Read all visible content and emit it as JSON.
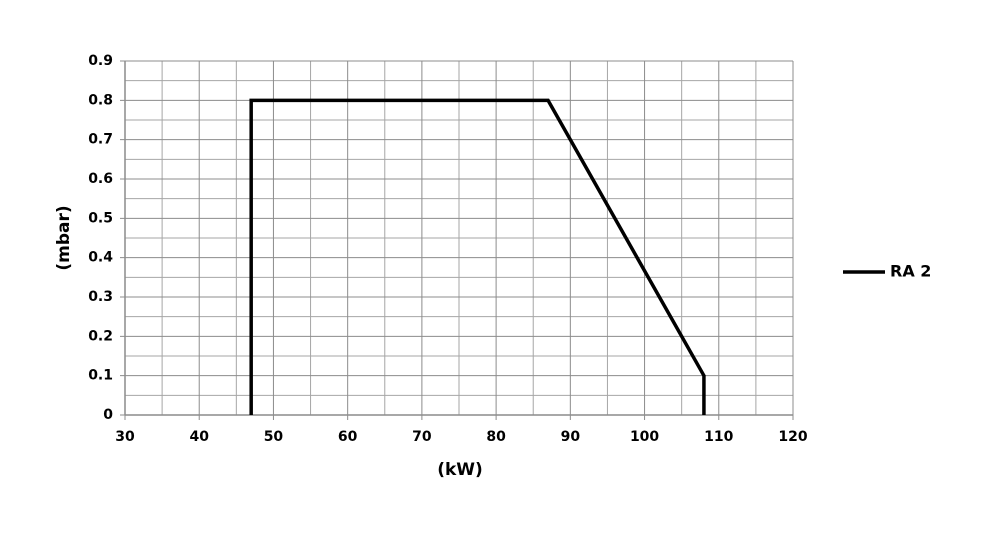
{
  "chart_data": {
    "type": "line",
    "x_label": "(kW)",
    "y_label": "(mbar)",
    "x": [
      47,
      47,
      87,
      108,
      108
    ],
    "series": [
      {
        "name": "RA 2",
        "color": "#000000",
        "values": [
          0,
          0.8,
          0.8,
          0.1,
          0
        ]
      }
    ],
    "xlim": [
      30,
      120
    ],
    "xticks": [
      30,
      40,
      50,
      60,
      70,
      80,
      90,
      100,
      110,
      120
    ],
    "ylim": [
      0,
      0.9
    ],
    "yticks": [
      0,
      0.1,
      0.2,
      0.3,
      0.4,
      0.5,
      0.6,
      0.7,
      0.8,
      0.9
    ],
    "grid": true,
    "legend": "right"
  }
}
